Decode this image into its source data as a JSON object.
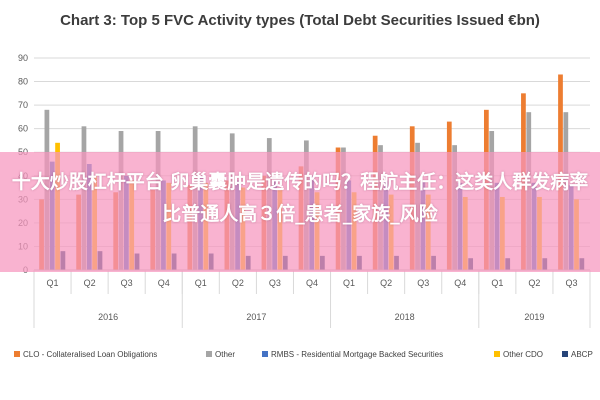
{
  "chart_data": {
    "type": "bar",
    "title": "Chart 3: Top 5 FVC Activity types (Total Debt Securities Issued €bn)",
    "ylim": [
      0,
      90
    ],
    "yticks": [
      0,
      10,
      20,
      30,
      40,
      50,
      60,
      70,
      80,
      90
    ],
    "grid": true,
    "legend": "bottom",
    "categories": [
      "Q1",
      "Q2",
      "Q3",
      "Q4",
      "Q1",
      "Q2",
      "Q3",
      "Q4",
      "Q1",
      "Q2",
      "Q3",
      "Q4",
      "Q1",
      "Q2",
      "Q3"
    ],
    "groups": [
      {
        "label": "2016",
        "count": 4
      },
      {
        "label": "2017",
        "count": 4
      },
      {
        "label": "2018",
        "count": 4
      },
      {
        "label": "2019",
        "count": 3
      }
    ],
    "series": [
      {
        "name": "CLO - Collateralised Loan Obligations",
        "color": "#ed7d31",
        "values": [
          30,
          32,
          33,
          34,
          36,
          38,
          40,
          44,
          52,
          57,
          61,
          63,
          68,
          75,
          83
        ]
      },
      {
        "name": "Other",
        "color": "#a5a5a5",
        "values": [
          68,
          61,
          59,
          59,
          61,
          58,
          56,
          55,
          52,
          53,
          54,
          53,
          59,
          67,
          67
        ]
      },
      {
        "name": "RMBS - Residential Mortgage Backed Securities",
        "color": "#4472c4",
        "values": [
          46,
          45,
          40,
          38,
          40,
          38,
          38,
          40,
          38,
          38,
          38,
          37,
          37,
          37,
          36
        ]
      },
      {
        "name": "Other CDO",
        "color": "#ffc000",
        "values": [
          54,
          40,
          38,
          37,
          37,
          35,
          34,
          33,
          33,
          32,
          32,
          31,
          31,
          31,
          30
        ]
      },
      {
        "name": "ABCP",
        "color": "#264478",
        "values": [
          8,
          8,
          7,
          7,
          7,
          6,
          6,
          6,
          6,
          6,
          6,
          5,
          5,
          5,
          5
        ]
      }
    ]
  },
  "overlay": {
    "text": "十大炒股杠杆平台 卵巢囊肿是遗传的吗？程航主任：这类人群发病率比普通人高３倍_患者_家族_风险"
  }
}
